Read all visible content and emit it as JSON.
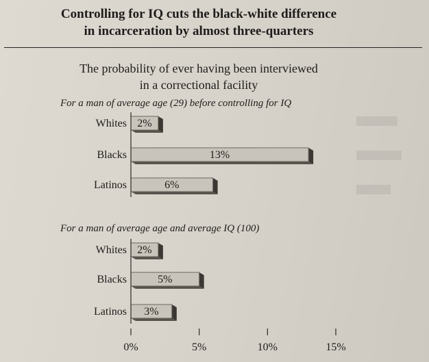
{
  "headline": [
    "Controlling for IQ cuts the black-white difference",
    "in incarceration by almost three-quarters"
  ],
  "subtitle": [
    "The probability of ever having been interviewed",
    "in a correctional facility"
  ],
  "chart_data": {
    "type": "bar",
    "orientation": "horizontal",
    "style": "3d-shaded",
    "bar_color": "#c9c4bb",
    "panels": [
      {
        "label": "For a man of average age (29) before controlling for IQ",
        "categories": [
          "Whites",
          "Blacks",
          "Latinos"
        ],
        "values": [
          2,
          13,
          6
        ],
        "value_labels": [
          "2%",
          "13%",
          "6%"
        ]
      },
      {
        "label": "For a man of average age and average IQ (100)",
        "categories": [
          "Whites",
          "Blacks",
          "Latinos"
        ],
        "values": [
          2,
          5,
          3
        ],
        "value_labels": [
          "2%",
          "5%",
          "3%"
        ]
      }
    ],
    "x_ticks": [
      0,
      5,
      10,
      15
    ],
    "x_tick_labels": [
      "0%",
      "5%",
      "10%",
      "15%"
    ],
    "xlim": [
      0,
      15
    ],
    "xlabel": "",
    "ylabel": "",
    "grid": false,
    "legend": "none"
  }
}
